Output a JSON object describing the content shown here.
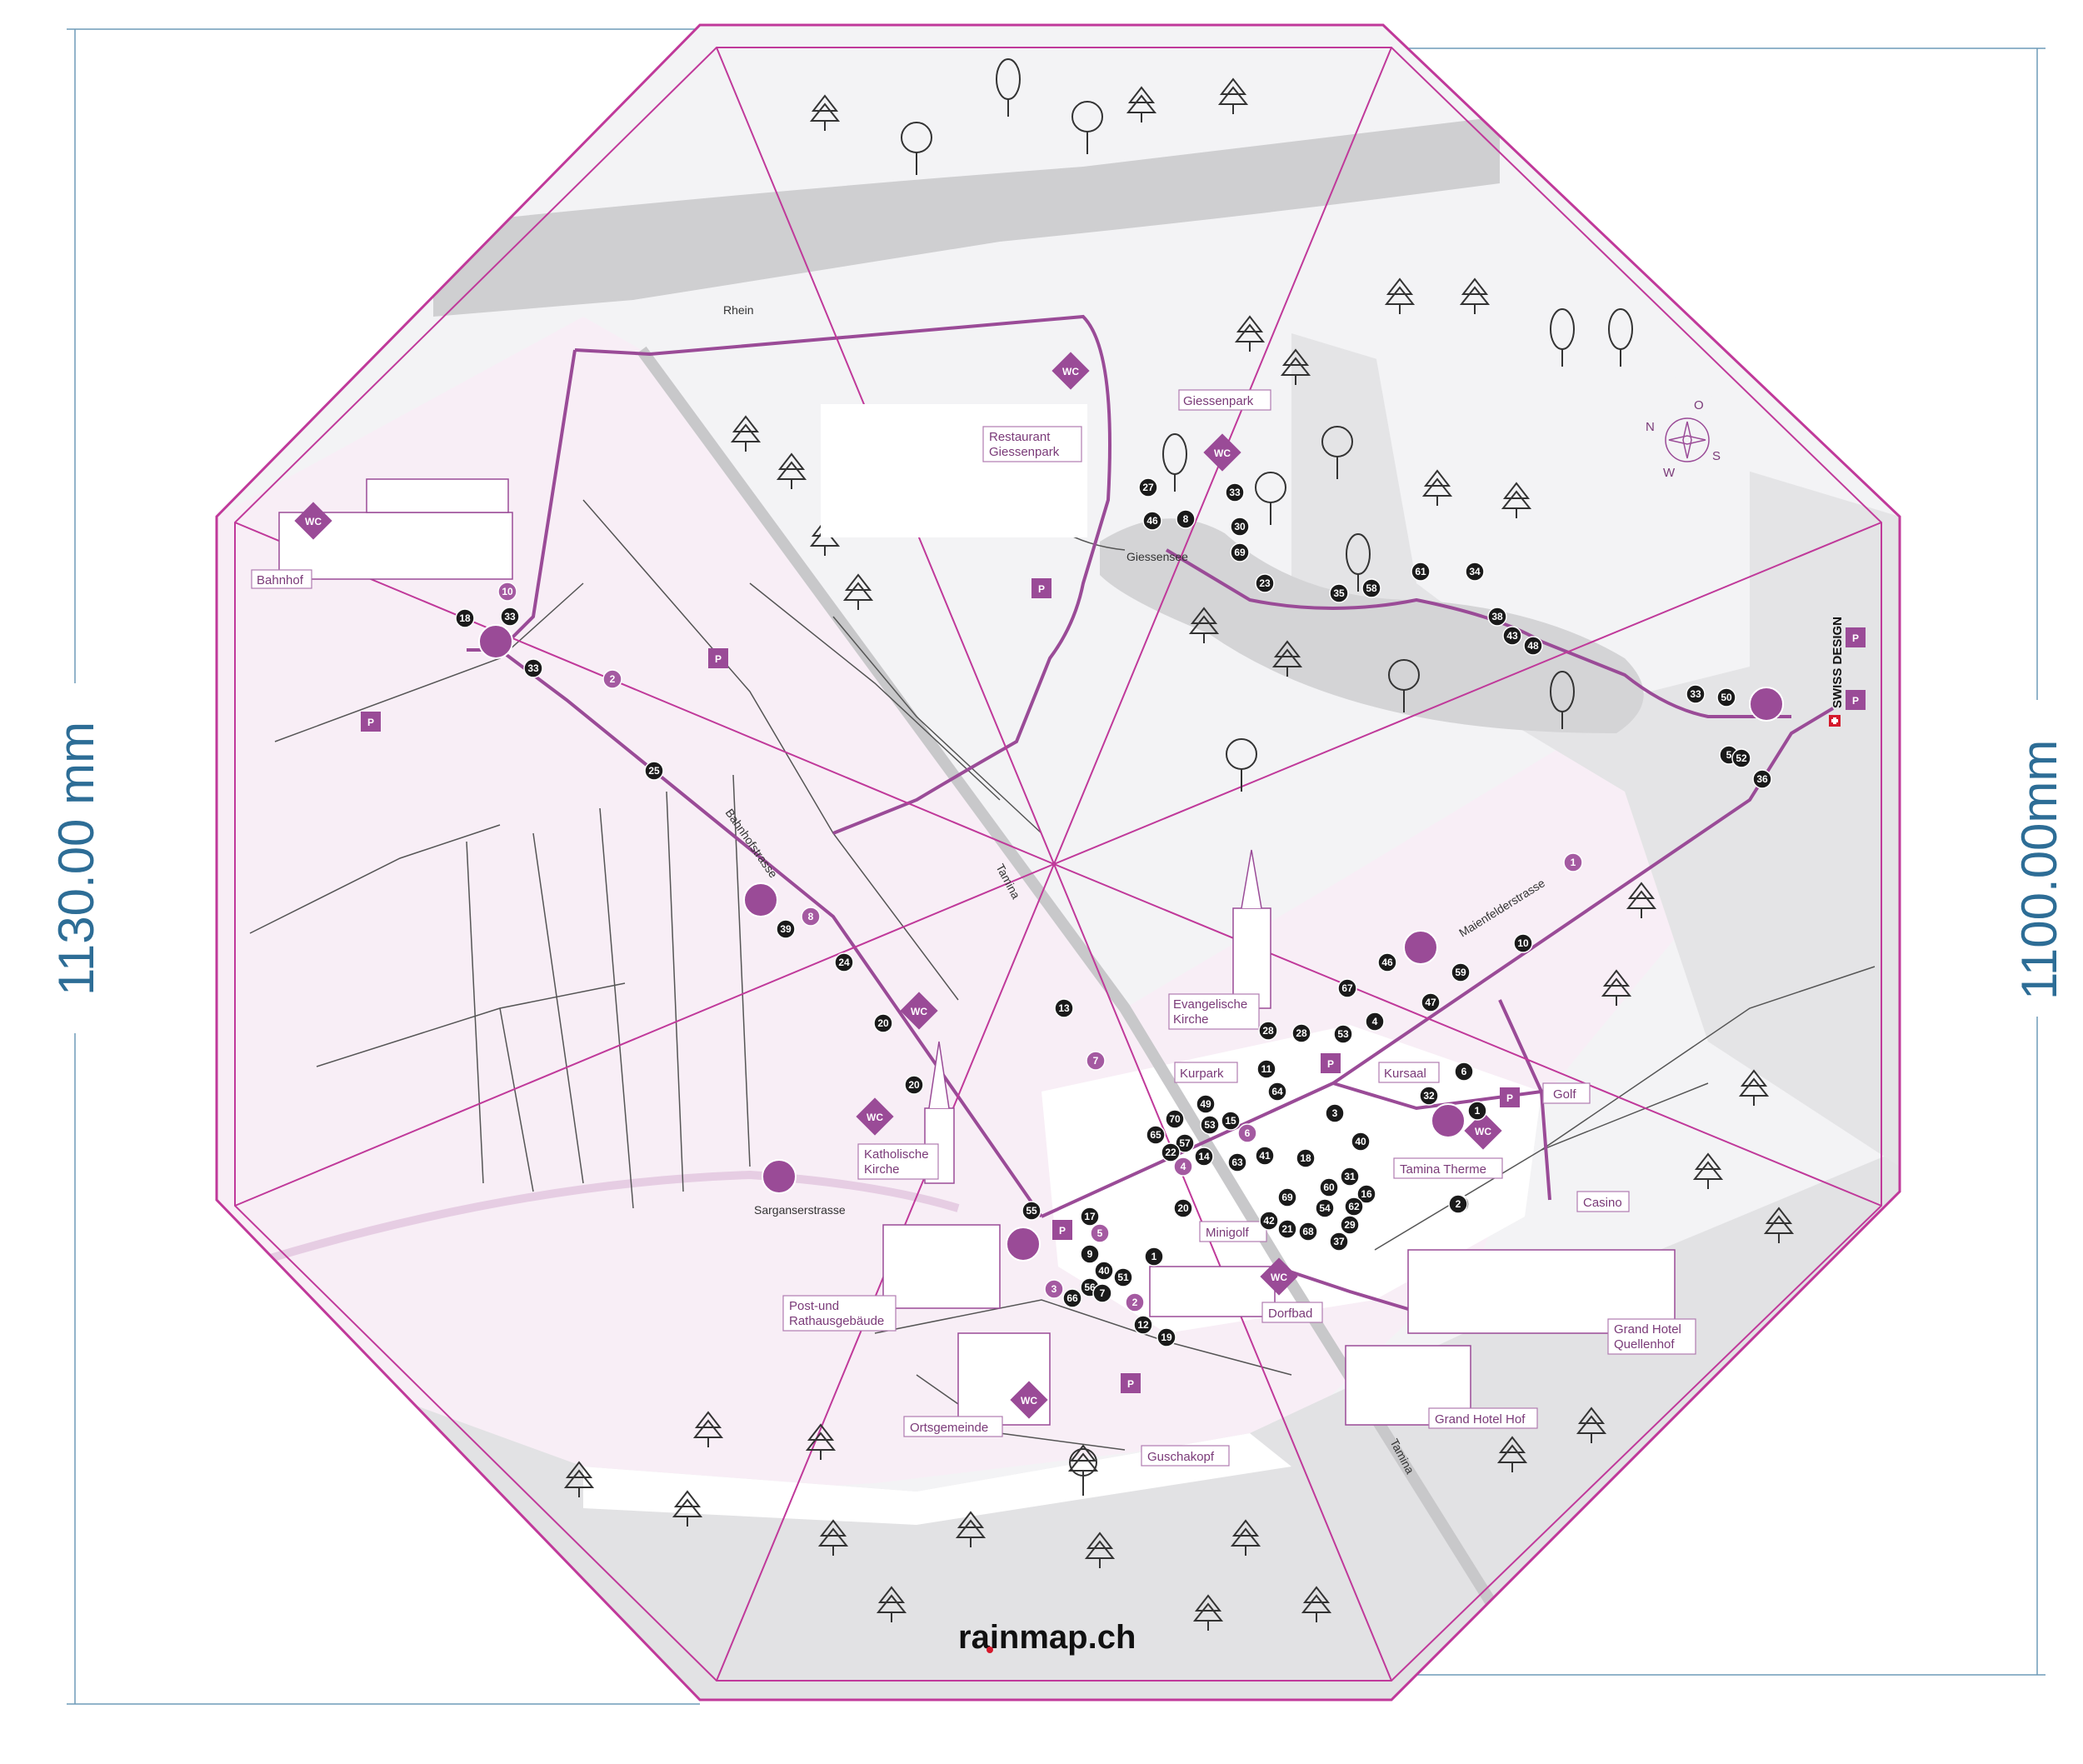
{
  "dimensions": {
    "left": "1130.00 mm",
    "right": "1100.00mm"
  },
  "brand": {
    "text": "rainmap.ch"
  },
  "swiss": {
    "text": "SWISS DESIGN"
  },
  "compass": {
    "n": "N",
    "o": "O",
    "s": "S",
    "w": "W"
  },
  "labels": {
    "bahnhof": "Bahnhof",
    "restaurant_1": "Restaurant",
    "restaurant_2": "Giessenpark",
    "giessenpark": "Giessenpark",
    "evangelische_1": "Evangelische",
    "evangelische_2": "Kirche",
    "kurpark": "Kurpark",
    "kursaal": "Kursaal",
    "golf": "Golf",
    "tamina_therme": "Tamina Therme",
    "casino": "Casino",
    "katholische_1": "Katholische",
    "katholische_2": "Kirche",
    "minigolf": "Minigolf",
    "dorfbad": "Dorfbad",
    "post_1": "Post-und",
    "post_2": "Rathausgebäude",
    "ortsgemeinde": "Ortsgemeinde",
    "guschakopf": "Guschakopf",
    "grand_hotel_hof": "Grand Hotel Hof",
    "quellenhof_1": "Grand Hotel",
    "quellenhof_2": "Quellenhof"
  },
  "streets": {
    "rhein": "Rhein",
    "giessensee": "Giessensee",
    "bahnhofstrasse": "Bahnhofstrasse",
    "tamina_north": "Tamina",
    "tamina_south": "Tamina",
    "maienfelderstrasse": "Maienfelderstrasse",
    "sarganserstrasse": "Sarganserstrasse"
  },
  "symbols": {
    "wc": "WC",
    "parking": "P"
  },
  "markers_dark": [
    "18",
    "33",
    "33",
    "25",
    "39",
    "24",
    "20",
    "20",
    "13",
    "27",
    "46",
    "8",
    "33",
    "30",
    "69",
    "23",
    "35",
    "58",
    "61",
    "34",
    "38",
    "43",
    "48",
    "33",
    "50",
    "5",
    "52",
    "36",
    "10",
    "59",
    "46",
    "47",
    "4",
    "53",
    "67",
    "28",
    "28",
    "11",
    "64",
    "3",
    "6",
    "32",
    "1",
    "40",
    "65",
    "70",
    "49",
    "53",
    "15",
    "57",
    "22",
    "14",
    "63",
    "41",
    "18",
    "31",
    "60",
    "16",
    "69",
    "54",
    "62",
    "21",
    "68",
    "29",
    "37",
    "42",
    "20",
    "3",
    "2",
    "55",
    "17",
    "9",
    "40",
    "56",
    "51",
    "7",
    "66",
    "1",
    "12",
    "19"
  ],
  "markers_purple": [
    "10",
    "2",
    "8",
    "7",
    "1",
    "6",
    "4",
    "5",
    "3",
    "2"
  ]
}
